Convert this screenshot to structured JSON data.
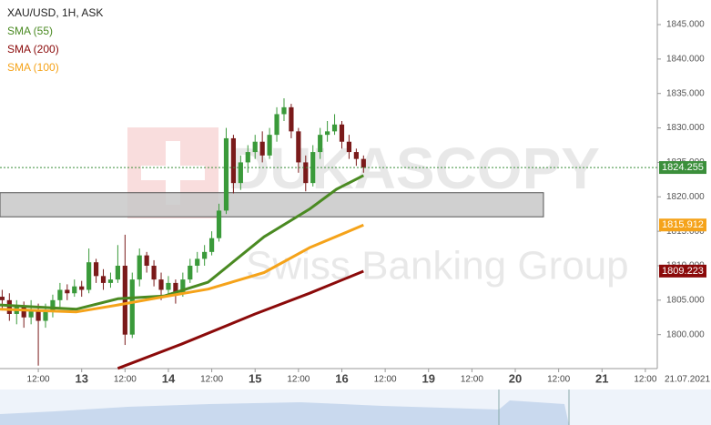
{
  "chart_data": {
    "type": "candlestick",
    "title": "XAU/USD, 1H, ASK",
    "watermark": [
      "DUKASCOPY",
      "Swiss Banking Group"
    ],
    "date_label": "21.07.2021",
    "xlim": [
      -10.6,
      171.3
    ],
    "ylim": [
      1795.07,
      1848.57
    ],
    "xticks": [
      {
        "value": 0,
        "label": "12:00"
      },
      {
        "value": 12,
        "label": "13"
      },
      {
        "value": 24,
        "label": "12:00"
      },
      {
        "value": 36,
        "label": "14"
      },
      {
        "value": 48,
        "label": "12:00"
      },
      {
        "value": 60,
        "label": "15"
      },
      {
        "value": 72,
        "label": "12:00"
      },
      {
        "value": 84,
        "label": "16"
      },
      {
        "value": 96,
        "label": "12:00"
      },
      {
        "value": 108,
        "label": "19"
      },
      {
        "value": 120,
        "label": "12:00"
      },
      {
        "value": 132,
        "label": "20"
      },
      {
        "value": 144,
        "label": "12:00"
      },
      {
        "value": 156,
        "label": "21"
      },
      {
        "value": 168,
        "label": "12:00"
      }
    ],
    "yticks": [
      {
        "value": 1800,
        "label": "1800.000"
      },
      {
        "value": 1805,
        "label": "1805.000"
      },
      {
        "value": 1810,
        "label": "1810.000"
      },
      {
        "value": 1815,
        "label": "1815.000"
      },
      {
        "value": 1820,
        "label": "1820.000"
      },
      {
        "value": 1825,
        "label": "1825.000"
      },
      {
        "value": 1830,
        "label": "1830.000"
      },
      {
        "value": 1835,
        "label": "1835.000"
      },
      {
        "value": 1840,
        "label": "1840.000"
      },
      {
        "value": 1845,
        "label": "1845.000"
      }
    ],
    "up_color": "#3a9a3a",
    "down_color": "#7a1a1a",
    "candles": {
      "x": [
        -10,
        -8,
        -6,
        -4,
        -2,
        0,
        2,
        4,
        6,
        8,
        10,
        12,
        14,
        16,
        18,
        20,
        22,
        24,
        26,
        28,
        30,
        32,
        34,
        36,
        38,
        40,
        42,
        44,
        46,
        48,
        50,
        52,
        54,
        56,
        58,
        60,
        62,
        64,
        66,
        68,
        70,
        72,
        74,
        76,
        78,
        80,
        82,
        84,
        86,
        88,
        90
      ],
      "ohlc": [
        [
          1805.5,
          1806.5,
          1803.5,
          1805
        ],
        [
          1805,
          1806,
          1802,
          1803
        ],
        [
          1803,
          1805,
          1801.5,
          1804
        ],
        [
          1804,
          1804.8,
          1801,
          1802.5
        ],
        [
          1802.5,
          1805,
          1801.5,
          1803.5
        ],
        [
          1803.5,
          1804.5,
          1795.5,
          1802
        ],
        [
          1802,
          1804.5,
          1801,
          1803.5
        ],
        [
          1803.5,
          1805.8,
          1802.5,
          1805
        ],
        [
          1805,
          1807.5,
          1804,
          1806.5
        ],
        [
          1806.5,
          1807.3,
          1805,
          1806
        ],
        [
          1806,
          1808,
          1805.5,
          1807
        ],
        [
          1807,
          1807.8,
          1805.5,
          1806.5
        ],
        [
          1806.5,
          1812.5,
          1806,
          1810.5
        ],
        [
          1810.5,
          1811,
          1807.5,
          1808.5
        ],
        [
          1808.5,
          1809.5,
          1806.5,
          1807.5
        ],
        [
          1807.5,
          1809,
          1806.8,
          1808
        ],
        [
          1808,
          1813,
          1807.5,
          1810
        ],
        [
          1810,
          1814.5,
          1798.5,
          1800
        ],
        [
          1800,
          1809,
          1799.5,
          1808
        ],
        [
          1808,
          1812.5,
          1807,
          1811.5
        ],
        [
          1811.5,
          1812,
          1809,
          1810
        ],
        [
          1810,
          1810.8,
          1807,
          1808
        ],
        [
          1808,
          1809,
          1805,
          1806.5
        ],
        [
          1806.5,
          1808.5,
          1805.5,
          1807.5
        ],
        [
          1807.5,
          1808,
          1804.5,
          1806
        ],
        [
          1806,
          1809,
          1805.5,
          1808
        ],
        [
          1808,
          1811,
          1807.5,
          1810
        ],
        [
          1810,
          1812,
          1809,
          1811
        ],
        [
          1811,
          1813,
          1810,
          1812
        ],
        [
          1812,
          1815,
          1811.5,
          1814
        ],
        [
          1814,
          1819,
          1813.5,
          1818
        ],
        [
          1818,
          1830,
          1817.5,
          1828.5
        ],
        [
          1828.5,
          1829,
          1820.5,
          1822
        ],
        [
          1822,
          1826,
          1821,
          1825
        ],
        [
          1825,
          1827.5,
          1823.5,
          1826.5
        ],
        [
          1826.5,
          1829,
          1825.5,
          1828
        ],
        [
          1828,
          1829.5,
          1825,
          1826
        ],
        [
          1826,
          1830,
          1825.5,
          1829
        ],
        [
          1829,
          1833,
          1828,
          1832
        ],
        [
          1832,
          1834.3,
          1831,
          1833
        ],
        [
          1833,
          1833.5,
          1828.5,
          1829.5
        ],
        [
          1829.5,
          1830,
          1823.5,
          1825
        ],
        [
          1825,
          1826,
          1820.8,
          1822
        ],
        [
          1822,
          1827.5,
          1821.5,
          1826.5
        ],
        [
          1826.5,
          1830,
          1825.5,
          1829
        ],
        [
          1829,
          1831,
          1828,
          1829.5
        ],
        [
          1829.5,
          1832,
          1829,
          1830.5
        ],
        [
          1830.5,
          1831,
          1827,
          1828
        ],
        [
          1828,
          1829,
          1825.5,
          1826.5
        ],
        [
          1826.5,
          1827,
          1824.5,
          1825.5
        ],
        [
          1825.5,
          1826,
          1823.5,
          1824.255
        ]
      ]
    },
    "series": [
      {
        "name": "SMA (55)",
        "color": "#4a8a22",
        "x": [
          -10.6,
          10.6,
          22,
          34.8,
          47,
          62.5,
          75,
          82.5,
          90
        ],
        "values": [
          1804.3,
          1803.7,
          1805.2,
          1805.6,
          1807.6,
          1814.2,
          1818.2,
          1821.1,
          1823.1
        ]
      },
      {
        "name": "SMA (200)",
        "color": "#8b0a0a",
        "x": [
          22,
          39.5,
          60,
          75,
          90
        ],
        "values": [
          1795.1,
          1798.6,
          1803,
          1806,
          1809.2
        ]
      },
      {
        "name": "SMA (100)",
        "color": "#f5a31a",
        "x": [
          -10.6,
          10.6,
          22,
          34.8,
          47,
          62.5,
          75,
          90
        ],
        "values": [
          1803.7,
          1803.3,
          1804.3,
          1805.5,
          1806.6,
          1809,
          1812.6,
          1815.9
        ]
      }
    ],
    "zone": {
      "x": [
        -10.6,
        139.8
      ],
      "y": [
        1817.1,
        1820.6
      ]
    },
    "price_tags": [
      {
        "value": 1824.255,
        "color": "#3b8f3b"
      },
      {
        "value": 1815.912,
        "color": "#f5a31a"
      },
      {
        "value": 1809.223,
        "color": "#8b0a0a"
      }
    ]
  }
}
